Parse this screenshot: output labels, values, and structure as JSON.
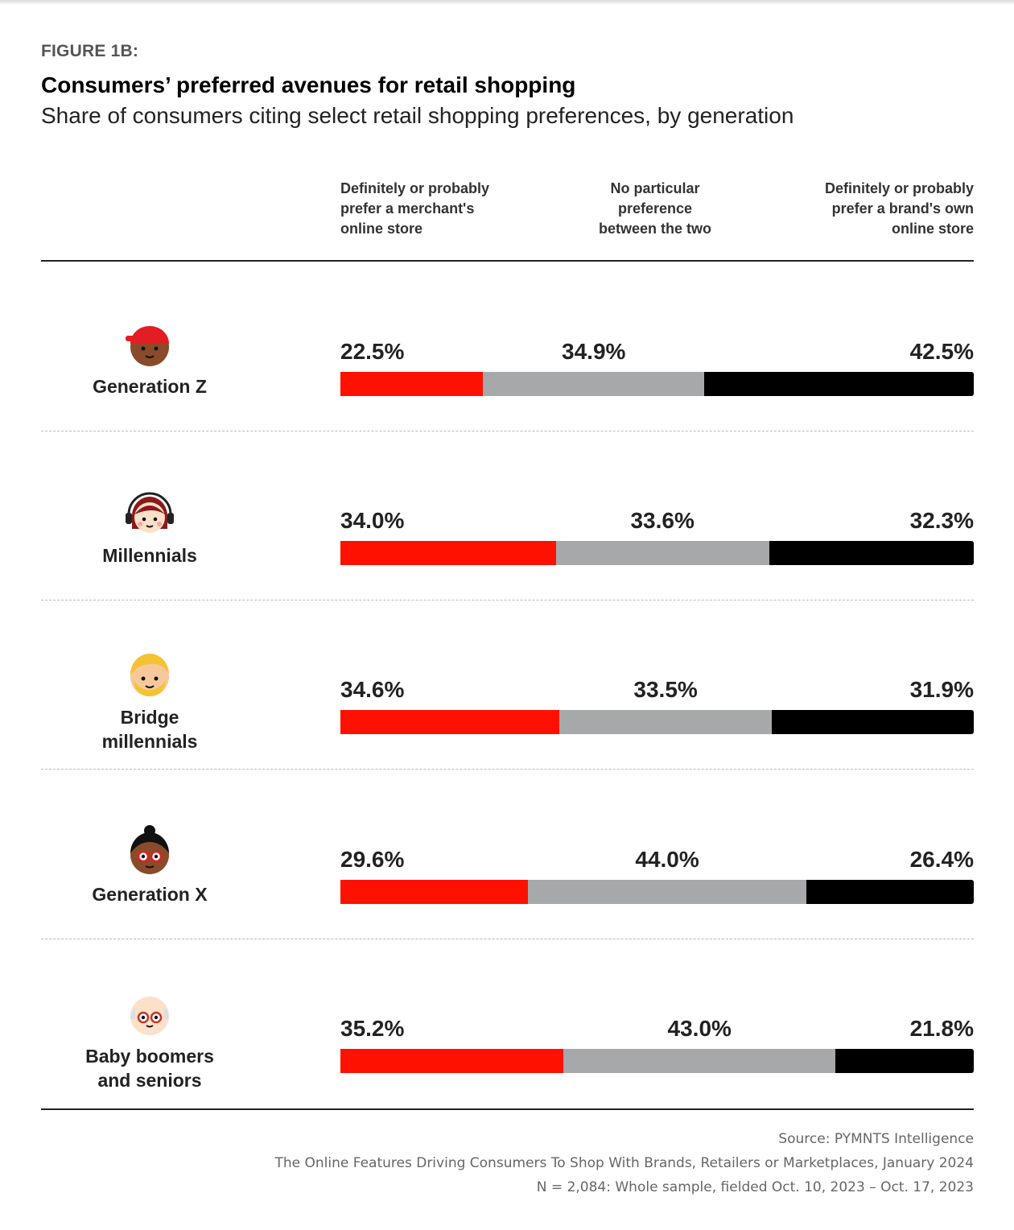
{
  "figure_label": "FIGURE 1B:",
  "colors": {
    "merchant": "#fe1100",
    "none": "#a7a8aa",
    "brand": "#000000"
  },
  "chart_data": {
    "type": "bar",
    "orientation": "horizontal",
    "stacked": true,
    "title": "Consumers’ preferred avenues for retail shopping",
    "subtitle": "Share of consumers citing select retail shopping preferences, by generation",
    "column_headers": [
      [
        "Definitely or probably",
        "prefer a merchant's",
        "online store"
      ],
      [
        "No particular",
        "preference",
        "between the two"
      ],
      [
        "Definitely or probably",
        "prefer a brand's own",
        "online store"
      ]
    ],
    "categories": [
      [
        "Generation Z"
      ],
      [
        "Millennials"
      ],
      [
        "Bridge",
        "millennials"
      ],
      [
        "Generation X"
      ],
      [
        "Baby boomers",
        "and seniors"
      ]
    ],
    "series": [
      {
        "values": [
          22.5,
          34.0,
          34.6,
          29.6,
          35.2
        ],
        "labels": [
          "22.5%",
          "34.0%",
          "34.6%",
          "29.6%",
          "35.2%"
        ]
      },
      {
        "values": [
          34.9,
          33.6,
          33.5,
          44.0,
          43.0
        ],
        "labels": [
          "34.9%",
          "33.6%",
          "33.5%",
          "44.0%",
          "43.0%"
        ]
      },
      {
        "values": [
          42.5,
          32.3,
          31.9,
          26.4,
          21.8
        ],
        "labels": [
          "42.5%",
          "32.3%",
          "31.9%",
          "26.4%",
          "21.8%"
        ]
      }
    ],
    "avatars": [
      "person-cap-icon",
      "person-headphones-icon",
      "person-beard-icon",
      "person-glasses-bun-icon",
      "person-elder-glasses-icon"
    ],
    "source": [
      "Source: PYMNTS Intelligence",
      "The Online Features Driving Consumers To Shop With Brands, Retailers or Marketplaces, January 2024",
      "N = 2,084: Whole sample, fielded Oct. 10, 2023 – Oct. 17, 2023"
    ]
  }
}
